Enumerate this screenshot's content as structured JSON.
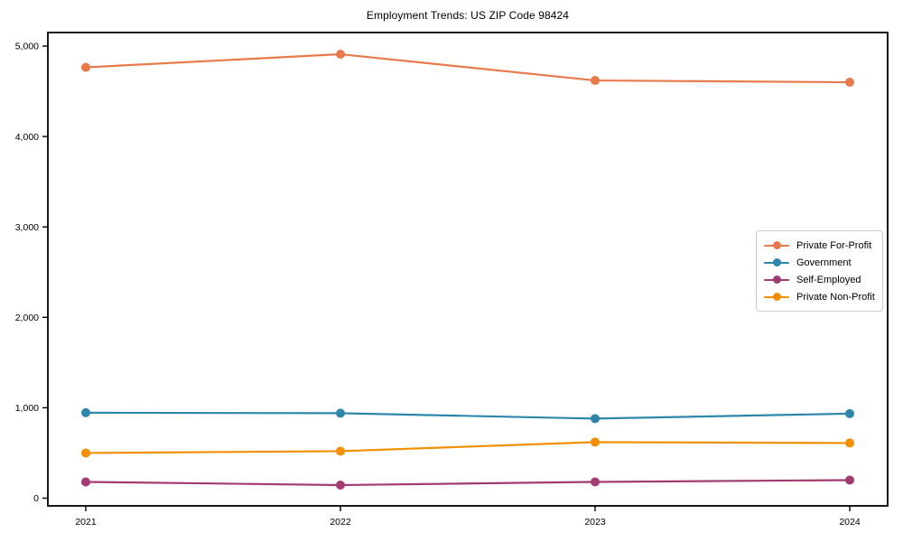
{
  "title": "Employment Trends: US ZIP Code 98424",
  "chart_data": {
    "type": "line",
    "title": "Employment Trends: US ZIP Code 98424",
    "xlabel": "",
    "ylabel": "",
    "x": [
      "2021",
      "2022",
      "2023",
      "2024"
    ],
    "series": [
      {
        "name": "Private For-Profit",
        "color": "#E8794A",
        "values": [
          4765,
          4910,
          4620,
          4600
        ]
      },
      {
        "name": "Government",
        "color": "#2E86AB",
        "values": [
          945,
          940,
          880,
          935
        ]
      },
      {
        "name": "Self-Employed",
        "color": "#A23B72",
        "values": [
          180,
          145,
          180,
          200
        ]
      },
      {
        "name": "Private Non-Profit",
        "color": "#F18F01",
        "values": [
          500,
          520,
          620,
          610
        ]
      }
    ],
    "yticks": [
      0,
      1000,
      2000,
      3000,
      4000,
      5000
    ],
    "ytick_labels": [
      "0",
      "1,000",
      "2,000",
      "3,000",
      "4,000",
      "5,000"
    ],
    "ylim": [
      -85,
      5150
    ],
    "grid": false,
    "legend_position": "center right",
    "marker": "circle",
    "line_width": 2.2,
    "marker_radius": 5
  }
}
